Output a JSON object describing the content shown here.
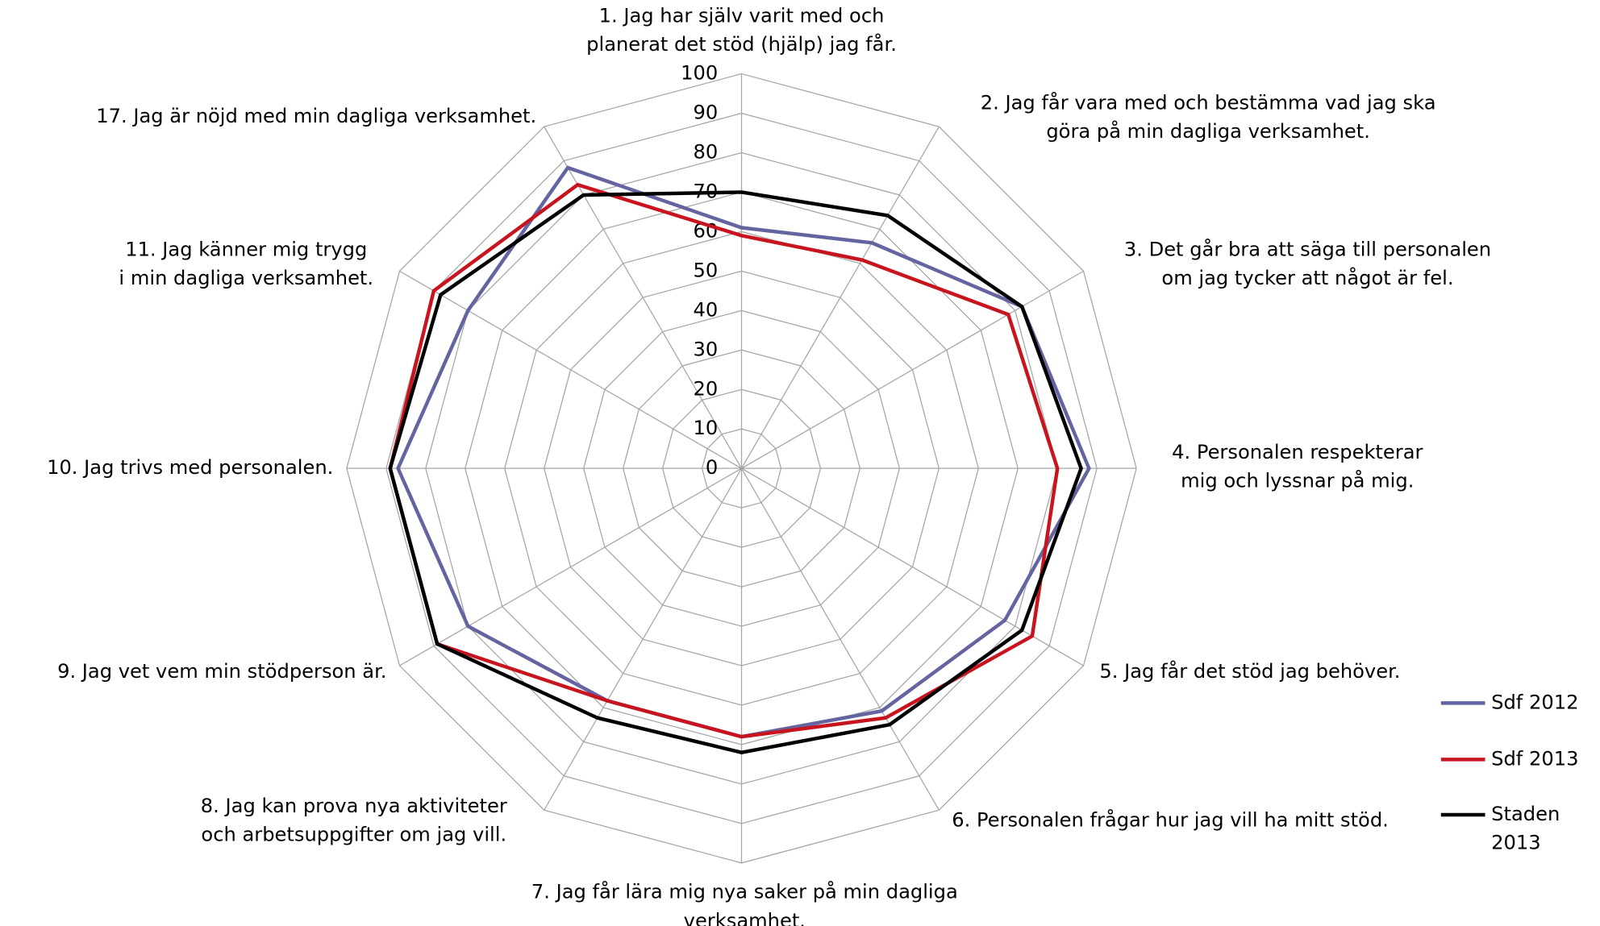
{
  "chart_data": {
    "type": "radar",
    "categories": [
      "1. Jag har själv varit med och\nplanerat det stöd (hjälp) jag får.",
      "2. Jag får vara med och bestämma vad jag ska\ngöra på min dagliga verksamhet.",
      "3. Det går bra att säga till personalen\nom jag tycker att något är fel.",
      "4. Personalen respekterar\nmig och lyssnar på mig.",
      "5. Jag får det stöd jag behöver.",
      "6. Personalen frågar hur jag vill ha mitt stöd.",
      "7. Jag får lära mig nya saker på min dagliga\nverksamhet.",
      "8. Jag kan prova nya aktiviteter\noch arbetsuppgifter om jag vill.",
      "9. Jag vet vem min stödperson är.",
      "10. Jag trivs med personalen.",
      "11. Jag känner mig trygg\ni min dagliga verksamhet.",
      "17.  Jag är nöjd med min dagliga verksamhet."
    ],
    "series": [
      {
        "name": "Sdf 2012",
        "color": "#6464a0",
        "values": [
          61,
          66,
          82,
          88,
          77,
          71,
          68,
          68,
          80,
          87,
          80,
          88
        ]
      },
      {
        "name": "Sdf 2013",
        "color": "#c8141e",
        "values": [
          59,
          61,
          78,
          80,
          85,
          73,
          68,
          68,
          89,
          89,
          90,
          83
        ]
      },
      {
        "name": "Staden\n2013",
        "color": "#000000",
        "values": [
          70,
          74,
          82,
          86,
          82,
          75,
          72,
          73,
          89,
          89,
          88,
          80
        ]
      }
    ],
    "ylim": [
      0,
      100
    ],
    "yticks": [
      0,
      10,
      20,
      30,
      40,
      50,
      60,
      70,
      80,
      90,
      100
    ],
    "grid": true,
    "legend": "right"
  }
}
